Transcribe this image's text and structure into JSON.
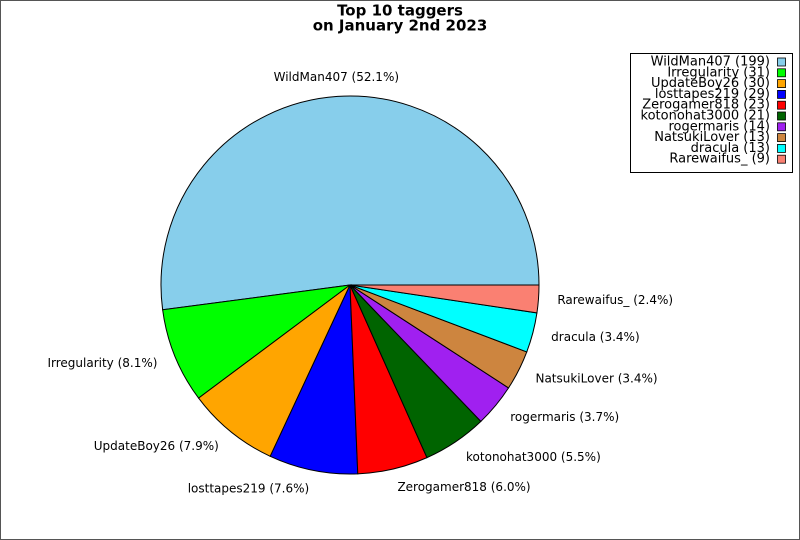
{
  "chart_data": {
    "type": "pie",
    "title": [
      "Top 10 taggers",
      "on January 2nd 2023"
    ],
    "categories": [
      "WildMan407 (199)",
      "Irregularity (31)",
      "UpdateBoy26 (30)",
      "losttapes219 (29)",
      "Zerogamer818 (23)",
      "kotonohat3000 (21)",
      "rogermaris (14)",
      "NatsukiLover (13)",
      "dracula (13)",
      "Rarewaifus_ (9)"
    ],
    "values": [
      199,
      31,
      30,
      29,
      23,
      21,
      14,
      13,
      13,
      9
    ],
    "value_labels": [
      "WildMan407 (52.1%)",
      "Irregularity (8.1%)",
      "UpdateBoy26 (7.9%)",
      "losttapes219 (7.6%)",
      "Zerogamer818 (6.0%)",
      "kotonohat3000 (5.5%)",
      "rogermaris (3.7%)",
      "NatsukiLover (3.4%)",
      "dracula (3.4%)",
      "Rarewaifus_ (2.4%)"
    ],
    "colors": [
      "#87ceeb",
      "#00ff00",
      "#ffa500",
      "#0000ff",
      "#ff0000",
      "#006400",
      "#a020f0",
      "#cd853f",
      "#00ffff",
      "#fa8072"
    ],
    "legend": "upper right"
  }
}
